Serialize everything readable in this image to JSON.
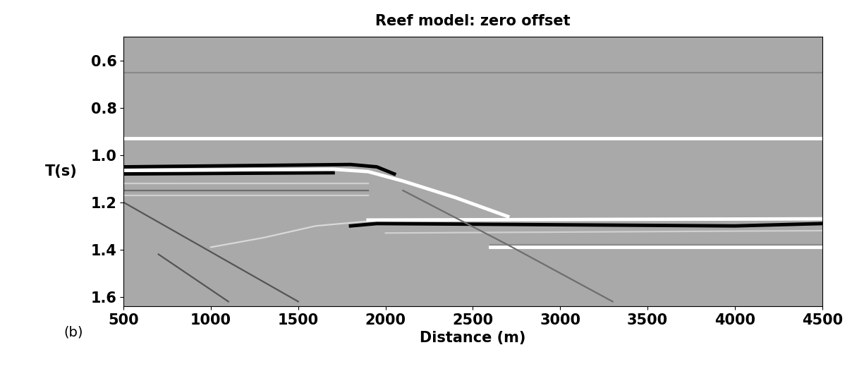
{
  "chart_data": {
    "type": "seismic",
    "title": "Reef model: zero offset",
    "xlabel": "Distance (m)",
    "ylabel": "T(s)",
    "color": "#a9a9a9",
    "xlim": [
      500,
      4500
    ],
    "xticks": [
      500,
      1000,
      1500,
      2000,
      2500,
      3000,
      3500,
      4000,
      4500
    ],
    "ylim": [
      1.64,
      0.5
    ],
    "yticks": [
      0.6,
      0.8,
      1.0,
      1.2,
      1.4,
      1.6
    ],
    "annotations": [
      {
        "text": "(b)"
      }
    ],
    "series": [
      {
        "color": "#8a8a8a",
        "x": [
          500,
          4500
        ],
        "values": [
          0.65,
          0.65
        ]
      },
      {
        "color": "#ffffff",
        "x": [
          500,
          4500
        ],
        "values": [
          0.93,
          0.93
        ]
      },
      {
        "color": "#000000",
        "x": [
          500,
          1800,
          1950,
          2050
        ],
        "values": [
          1.05,
          1.04,
          1.05,
          1.08
        ]
      },
      {
        "color": "#000000",
        "x": [
          500,
          1700
        ],
        "values": [
          1.08,
          1.075
        ]
      },
      {
        "color": "#ffffff",
        "x": [
          500,
          1700,
          1900,
          2100,
          2400,
          2700
        ],
        "values": [
          1.065,
          1.06,
          1.07,
          1.11,
          1.18,
          1.26
        ]
      },
      {
        "color": "#d0d0d0",
        "x": [
          500,
          1900
        ],
        "values": [
          1.12,
          1.12
        ]
      },
      {
        "color": "#6e6e6e",
        "x": [
          500,
          1900
        ],
        "values": [
          1.15,
          1.15
        ]
      },
      {
        "color": "#d0d0d0",
        "x": [
          500,
          1900
        ],
        "values": [
          1.17,
          1.17
        ]
      },
      {
        "color": "#d9d9d9",
        "x": [
          1000,
          1300,
          1600,
          1900
        ],
        "values": [
          1.39,
          1.35,
          1.3,
          1.28
        ]
      },
      {
        "color": "#ffffff",
        "x": [
          1900,
          4500
        ],
        "values": [
          1.275,
          1.27
        ]
      },
      {
        "color": "#000000",
        "x": [
          1800,
          1950,
          4000,
          4500
        ],
        "values": [
          1.3,
          1.29,
          1.3,
          1.29
        ]
      },
      {
        "color": "#d0d0d0",
        "x": [
          2000,
          4500
        ],
        "values": [
          1.33,
          1.32
        ]
      },
      {
        "color": "#8a8a8a",
        "x": [
          2600,
          4500
        ],
        "values": [
          1.38,
          1.38
        ]
      },
      {
        "color": "#ffffff",
        "x": [
          2600,
          4500
        ],
        "values": [
          1.39,
          1.39
        ]
      },
      {
        "color": "#555555",
        "x": [
          500,
          1500
        ],
        "values": [
          1.2,
          1.62
        ]
      },
      {
        "color": "#555555",
        "x": [
          700,
          1100
        ],
        "values": [
          1.42,
          1.62
        ]
      },
      {
        "color": "#6e6e6e",
        "x": [
          2100,
          2700,
          3300
        ],
        "values": [
          1.15,
          1.38,
          1.62
        ]
      }
    ]
  }
}
